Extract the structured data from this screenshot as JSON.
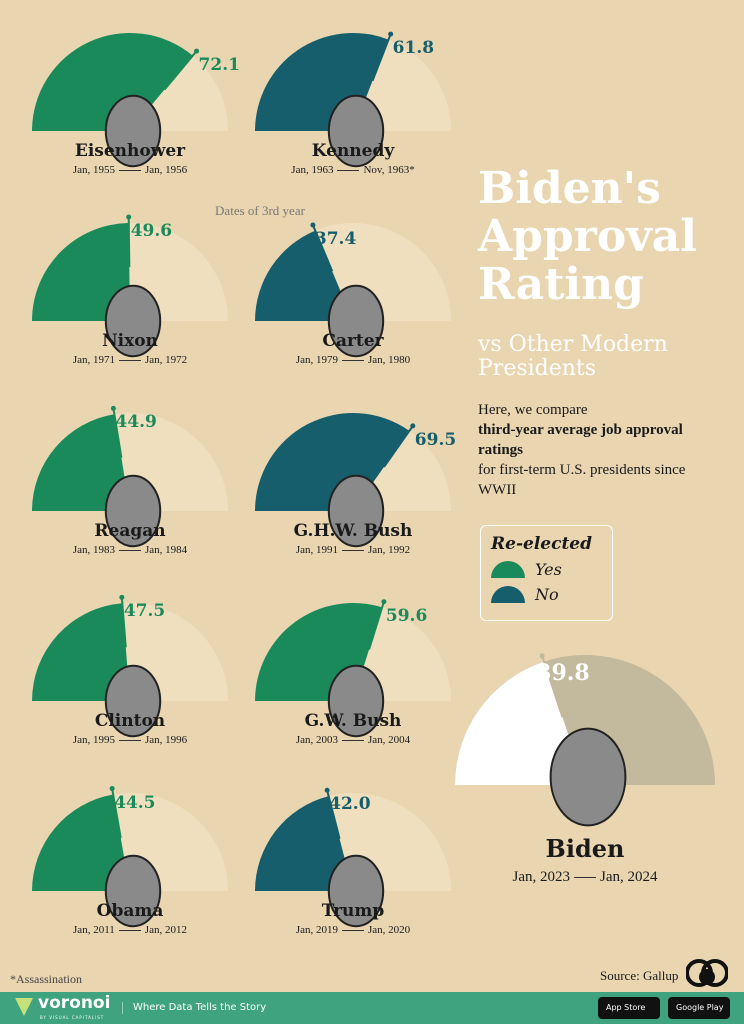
{
  "chart_data": {
    "type": "gauge",
    "title": "Biden's Approval Rating",
    "subtitle": "vs Other Modern Presidents",
    "range": [
      0,
      100
    ],
    "legend": {
      "title": "Re-elected",
      "items": [
        {
          "label": "Yes",
          "color": "#1b8a5a"
        },
        {
          "label": "No",
          "color": "#175e6c"
        }
      ]
    },
    "series": [
      {
        "name": "Eisenhower",
        "value": 72.1,
        "start": "Jan, 1955",
        "end": "Jan, 1956",
        "reelected": true
      },
      {
        "name": "Kennedy",
        "value": 61.8,
        "start": "Jan, 1963",
        "end": "Nov, 1963*",
        "reelected": false
      },
      {
        "name": "Nixon",
        "value": 49.6,
        "start": "Jan, 1971",
        "end": "Jan, 1972",
        "reelected": true
      },
      {
        "name": "Carter",
        "value": 37.4,
        "start": "Jan, 1979",
        "end": "Jan, 1980",
        "reelected": false
      },
      {
        "name": "Reagan",
        "value": 44.9,
        "start": "Jan, 1983",
        "end": "Jan, 1984",
        "reelected": true
      },
      {
        "name": "G.H.W. Bush",
        "value": 69.5,
        "start": "Jan, 1991",
        "end": "Jan, 1992",
        "reelected": false
      },
      {
        "name": "Clinton",
        "value": 47.5,
        "start": "Jan, 1995",
        "end": "Jan, 1996",
        "reelected": true
      },
      {
        "name": "G.W. Bush",
        "value": 59.6,
        "start": "Jan, 2003",
        "end": "Jan, 2004",
        "reelected": true
      },
      {
        "name": "Obama",
        "value": 44.5,
        "start": "Jan, 2011",
        "end": "Jan, 2012",
        "reelected": true
      },
      {
        "name": "Trump",
        "value": 42.0,
        "start": "Jan, 2019",
        "end": "Jan, 2020",
        "reelected": false
      },
      {
        "name": "Biden",
        "value": 39.8,
        "start": "Jan, 2023",
        "end": "Jan, 2024",
        "reelected": null
      }
    ],
    "annotation": "Dates of 3rd year"
  },
  "colors": {
    "yes": "#1b8a5a",
    "no": "#175e6c",
    "remainder": "#efdfbe",
    "biden_fill": "#ffffff",
    "biden_remainder": "#c3b99c"
  },
  "description": {
    "pre": "Here, we compare",
    "bold": "third-year average job approval ratings",
    "post": "for first-term U.S. presidents since WWII"
  },
  "note": "*Assassination",
  "source": "Source: Gallup",
  "footer": {
    "brand": "voronoi",
    "brand_sub": "BY VISUAL CAPITALIST",
    "tagline": "Where Data Tells the Story",
    "app_store": "App Store",
    "google_play": "Google Play"
  }
}
